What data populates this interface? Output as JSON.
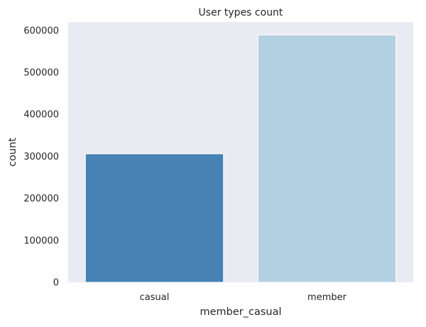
{
  "chart_data": {
    "type": "bar",
    "title": "User types count",
    "xlabel": "member_casual",
    "ylabel": "count",
    "categories": [
      "casual",
      "member"
    ],
    "values": [
      306000,
      589000
    ],
    "colors": [
      "#4682b4",
      "#b3cfe2"
    ],
    "ylim": [
      0,
      620000
    ],
    "yticks": [
      0,
      100000,
      200000,
      300000,
      400000,
      500000,
      600000
    ],
    "ytick_labels": [
      "0",
      "100000",
      "200000",
      "300000",
      "400000",
      "500000",
      "600000"
    ],
    "grid": false,
    "legend": "none",
    "background_color": "#eaeaf2"
  }
}
